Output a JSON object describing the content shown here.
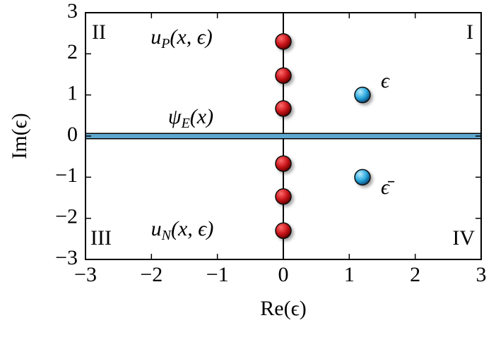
{
  "chart_data": {
    "type": "scatter",
    "xlabel": "Re(ϵ)",
    "ylabel": "Im(ϵ)",
    "xlim": [
      -3,
      3
    ],
    "ylim": [
      -3,
      3
    ],
    "xticks": [
      {
        "value": -3,
        "label": "−3"
      },
      {
        "value": -2,
        "label": "−2"
      },
      {
        "value": -1,
        "label": "−1"
      },
      0,
      1,
      2,
      3
    ],
    "yticks": [
      {
        "value": -3,
        "label": "−3"
      },
      {
        "value": -2,
        "label": "−2"
      },
      {
        "value": -1,
        "label": "−1"
      },
      0,
      1,
      2,
      3
    ],
    "series": [
      {
        "color": "#c8141a",
        "x": [
          0,
          0,
          0,
          0,
          0,
          0
        ],
        "values": [
          2.3,
          1.47,
          0.67,
          -0.67,
          -1.47,
          -2.3
        ]
      },
      {
        "color": "#2aa7dc",
        "x": [
          1.2,
          1.2
        ],
        "values": [
          1.0,
          -1.0
        ]
      }
    ],
    "quadrant_labels": [
      "I",
      "II",
      "III",
      "IV"
    ],
    "annotations": [
      {
        "base": "u",
        "sub": "P",
        "rest": "(x, ϵ)"
      },
      {
        "base": "ψ",
        "sub": "E",
        "rest": "(x)"
      },
      {
        "base": "u",
        "sub": "N",
        "rest": "(x, ϵ)"
      },
      {
        "base": "ϵ"
      },
      {
        "base": "ϵ̄"
      }
    ],
    "hline_color": "#5fa8cf"
  }
}
